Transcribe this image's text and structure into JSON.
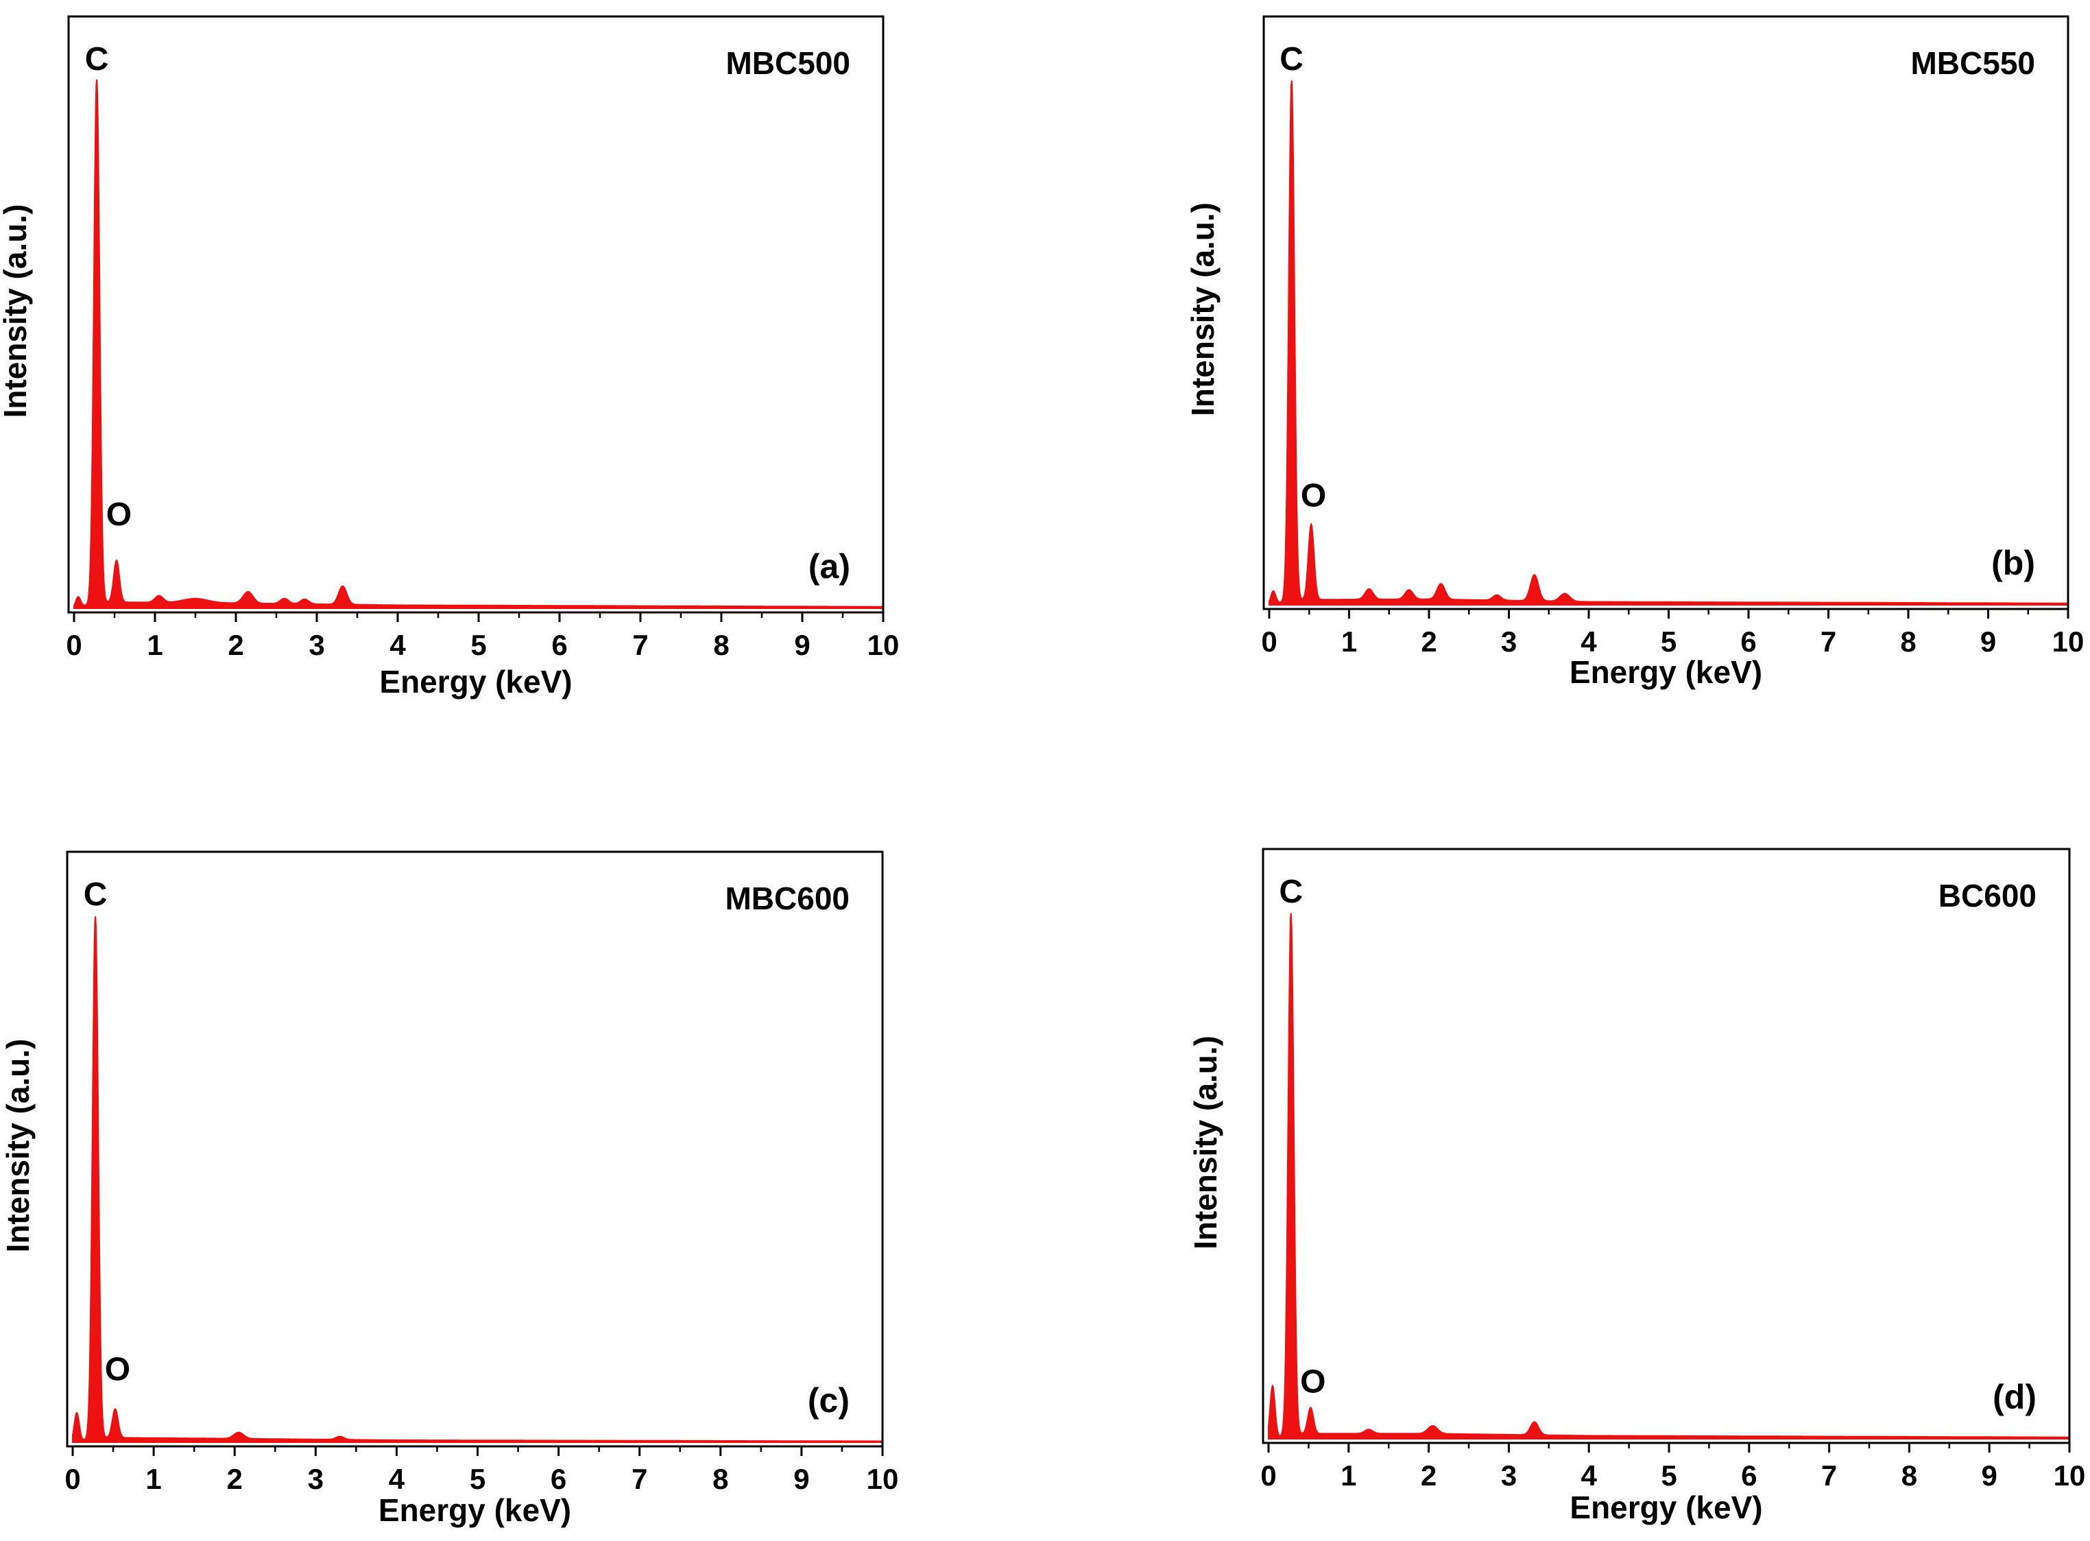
{
  "chart_data": [
    {
      "type": "area",
      "panel_label": "(a)",
      "sample": "MBC500",
      "xlabel": "Energy (keV)",
      "ylabel": "Intensity (a.u.)",
      "xlim": [
        0,
        10
      ],
      "ylim": [
        0,
        100
      ],
      "xticks": [
        "0",
        "1",
        "2",
        "3",
        "4",
        "5",
        "6",
        "7",
        "8",
        "9",
        "10"
      ],
      "color": "#ee1111",
      "peak_labels": [
        {
          "text": "C",
          "x": 0.28,
          "y": 100
        },
        {
          "text": "O",
          "x": 0.52,
          "y": 13
        }
      ],
      "peaks": [
        {
          "x": 0.05,
          "h": 2.0,
          "w": 0.03
        },
        {
          "x": 0.28,
          "h": 100,
          "w": 0.035
        },
        {
          "x": 0.525,
          "h": 8.0,
          "w": 0.035
        },
        {
          "x": 1.05,
          "h": 1.3,
          "w": 0.05
        },
        {
          "x": 1.5,
          "h": 0.8,
          "w": 0.15
        },
        {
          "x": 2.15,
          "h": 2.2,
          "w": 0.06
        },
        {
          "x": 2.6,
          "h": 1.0,
          "w": 0.05
        },
        {
          "x": 2.85,
          "h": 0.9,
          "w": 0.05
        },
        {
          "x": 3.32,
          "h": 3.5,
          "w": 0.05
        }
      ],
      "baseline": [
        [
          0.3,
          1.2
        ],
        [
          2.0,
          1.0
        ],
        [
          4.0,
          0.6
        ],
        [
          10.0,
          0.3
        ]
      ]
    },
    {
      "type": "area",
      "panel_label": "(b)",
      "sample": "MBC550",
      "xlabel": "Energy (keV)",
      "ylabel": "Intensity (a.u.)",
      "xlim": [
        0,
        10
      ],
      "ylim": [
        0,
        100
      ],
      "xticks": [
        "0",
        "1",
        "2",
        "3",
        "4",
        "5",
        "6",
        "7",
        "8",
        "9",
        "10"
      ],
      "color": "#ee1111",
      "peak_labels": [
        {
          "text": "C",
          "x": 0.28,
          "y": 100
        },
        {
          "text": "O",
          "x": 0.52,
          "y": 16
        }
      ],
      "peaks": [
        {
          "x": 0.05,
          "h": 2.5,
          "w": 0.03
        },
        {
          "x": 0.28,
          "h": 100,
          "w": 0.035
        },
        {
          "x": 0.525,
          "h": 14.5,
          "w": 0.035
        },
        {
          "x": 1.25,
          "h": 2.0,
          "w": 0.05
        },
        {
          "x": 1.75,
          "h": 1.8,
          "w": 0.05
        },
        {
          "x": 2.15,
          "h": 3.0,
          "w": 0.05
        },
        {
          "x": 2.85,
          "h": 1.0,
          "w": 0.05
        },
        {
          "x": 3.32,
          "h": 5.0,
          "w": 0.05
        },
        {
          "x": 3.7,
          "h": 1.5,
          "w": 0.06
        }
      ],
      "baseline": [
        [
          0.3,
          1.0
        ],
        [
          2.0,
          1.1
        ],
        [
          4.0,
          0.6
        ],
        [
          10.0,
          0.3
        ]
      ]
    },
    {
      "type": "area",
      "panel_label": "(c)",
      "sample": "MBC600",
      "xlabel": "Energy (keV)",
      "ylabel": "Intensity (a.u.)",
      "xlim": [
        0,
        10
      ],
      "ylim": [
        0,
        100
      ],
      "xticks": [
        "0",
        "1",
        "2",
        "3",
        "4",
        "5",
        "6",
        "7",
        "8",
        "9",
        "10"
      ],
      "color": "#ee1111",
      "peak_labels": [
        {
          "text": "C",
          "x": 0.28,
          "y": 100
        },
        {
          "text": "O",
          "x": 0.52,
          "y": 9
        }
      ],
      "peaks": [
        {
          "x": 0.05,
          "h": 5.5,
          "w": 0.03
        },
        {
          "x": 0.28,
          "h": 100,
          "w": 0.035
        },
        {
          "x": 0.525,
          "h": 5.5,
          "w": 0.035
        },
        {
          "x": 2.05,
          "h": 1.2,
          "w": 0.06
        },
        {
          "x": 3.3,
          "h": 0.6,
          "w": 0.05
        }
      ],
      "baseline": [
        [
          0.3,
          0.9
        ],
        [
          2.0,
          0.7
        ],
        [
          4.0,
          0.4
        ],
        [
          10.0,
          0.2
        ]
      ]
    },
    {
      "type": "area",
      "panel_label": "(d)",
      "sample": "BC600",
      "xlabel": "Energy (keV)",
      "ylabel": "Intensity (a.u.)",
      "xlim": [
        0,
        10
      ],
      "ylim": [
        0,
        100
      ],
      "xticks": [
        "0",
        "1",
        "2",
        "3",
        "4",
        "5",
        "6",
        "7",
        "8",
        "9",
        "10"
      ],
      "color": "#ee1111",
      "peak_labels": [
        {
          "text": "C",
          "x": 0.28,
          "y": 100
        },
        {
          "text": "O",
          "x": 0.52,
          "y": 6
        }
      ],
      "peaks": [
        {
          "x": 0.05,
          "h": 10.0,
          "w": 0.03
        },
        {
          "x": 0.28,
          "h": 100,
          "w": 0.035
        },
        {
          "x": 0.525,
          "h": 5.0,
          "w": 0.035
        },
        {
          "x": 1.25,
          "h": 0.8,
          "w": 0.05
        },
        {
          "x": 2.05,
          "h": 1.5,
          "w": 0.06
        },
        {
          "x": 3.32,
          "h": 2.5,
          "w": 0.05
        }
      ],
      "baseline": [
        [
          0.3,
          1.0
        ],
        [
          2.0,
          1.0
        ],
        [
          4.0,
          0.6
        ],
        [
          10.0,
          0.3
        ]
      ]
    }
  ]
}
